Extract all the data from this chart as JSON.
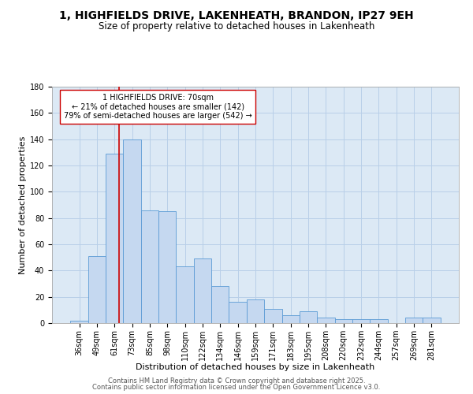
{
  "title": "1, HIGHFIELDS DRIVE, LAKENHEATH, BRANDON, IP27 9EH",
  "subtitle": "Size of property relative to detached houses in Lakenheath",
  "xlabel": "Distribution of detached houses by size in Lakenheath",
  "ylabel": "Number of detached properties",
  "bar_labels": [
    "36sqm",
    "49sqm",
    "61sqm",
    "73sqm",
    "85sqm",
    "98sqm",
    "110sqm",
    "122sqm",
    "134sqm",
    "146sqm",
    "159sqm",
    "171sqm",
    "183sqm",
    "195sqm",
    "208sqm",
    "220sqm",
    "232sqm",
    "244sqm",
    "257sqm",
    "269sqm",
    "281sqm"
  ],
  "bar_values": [
    2,
    51,
    129,
    140,
    86,
    85,
    43,
    49,
    28,
    16,
    18,
    11,
    6,
    9,
    4,
    3,
    3,
    3,
    0,
    4,
    4
  ],
  "bar_color": "#c5d8f0",
  "bar_edge_color": "#5b9bd5",
  "ax_bg_color": "#dce9f5",
  "ylim": [
    0,
    180
  ],
  "yticks": [
    0,
    20,
    40,
    60,
    80,
    100,
    120,
    140,
    160,
    180
  ],
  "vline_color": "#cc0000",
  "annotation_title": "1 HIGHFIELDS DRIVE: 70sqm",
  "annotation_line1": "← 21% of detached houses are smaller (142)",
  "annotation_line2": "79% of semi-detached houses are larger (542) →",
  "annotation_box_color": "#ffffff",
  "annotation_box_edge": "#cc0000",
  "footer1": "Contains HM Land Registry data © Crown copyright and database right 2025.",
  "footer2": "Contains public sector information licensed under the Open Government Licence v3.0.",
  "bg_color": "#ffffff",
  "grid_color": "#b8cfe8",
  "title_fontsize": 10,
  "subtitle_fontsize": 8.5,
  "xlabel_fontsize": 8,
  "ylabel_fontsize": 8,
  "tick_fontsize": 7,
  "annotation_fontsize": 7,
  "footer_fontsize": 6
}
